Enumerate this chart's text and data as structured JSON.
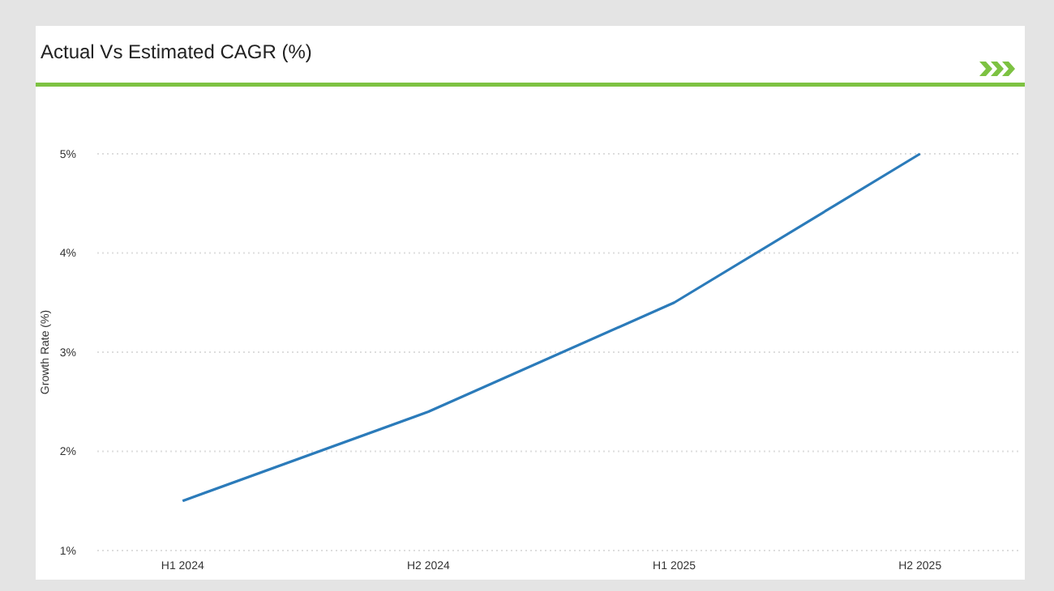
{
  "chart_data": {
    "type": "line",
    "title": "Actual Vs Estimated CAGR (%)",
    "ylabel": "Growth Rate (%)",
    "categories": [
      "H1 2024",
      "H2 2024",
      "H1 2025",
      "H2 2025"
    ],
    "series": [
      {
        "color": "#2b7bba",
        "values": [
          1.5,
          2.4,
          3.5,
          5.0
        ]
      }
    ],
    "ylim": [
      1,
      5
    ],
    "yticks": [
      {
        "value": 1,
        "label": "1%"
      },
      {
        "value": 2,
        "label": "2%"
      },
      {
        "value": 3,
        "label": "3%"
      },
      {
        "value": 4,
        "label": "4%"
      },
      {
        "value": 5,
        "label": "5%"
      }
    ],
    "grid": "y",
    "marker": "none",
    "line_style": "solid"
  }
}
